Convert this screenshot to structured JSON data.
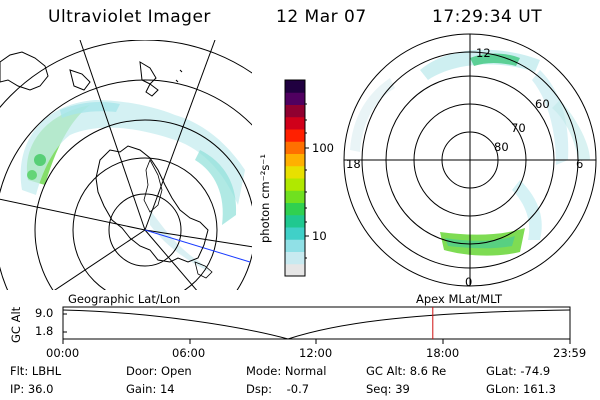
{
  "header": {
    "instrument": "Ultraviolet Imager",
    "date": "12 Mar 07",
    "time": "17:29:34 UT"
  },
  "colorbar": {
    "unit_label": "photon cm⁻²s⁻¹",
    "tick_100": "100",
    "tick_10": "10",
    "colors": [
      "#e6e6e6",
      "#c8eaf0",
      "#90e0e6",
      "#40d0c8",
      "#20c890",
      "#30d050",
      "#70e020",
      "#b0e800",
      "#e8e000",
      "#ffb000",
      "#ff7000",
      "#ff2000",
      "#d0001a",
      "#900030",
      "#500060",
      "#200040"
    ]
  },
  "left_map": {
    "caption": "Geographic Lat/Lon"
  },
  "right_map": {
    "caption": "Apex MLat/MLT",
    "lat_labels": {
      "l80": "80",
      "l70": "70",
      "l60": "60"
    },
    "mlt_labels": {
      "m12": "12",
      "m18": "18",
      "m6": "6",
      "m0": "0"
    }
  },
  "altitude_panel": {
    "ylabel": "GC Alt",
    "ytick_top": "9.0",
    "ytick_bottom": "1.8",
    "xticks": [
      "00:00",
      "06:00",
      "12:00",
      "18:00",
      "23:59"
    ],
    "marker_time": "17:29:34"
  },
  "info": {
    "filter": "Flt: LBHL",
    "ip": "IP: 36.0",
    "door": "Door: Open",
    "gain": "Gain: 14",
    "mode": "Mode: Normal",
    "dsp": "Dsp:    -0.7",
    "gc_alt": "GC Alt: 8.6 Re",
    "seq": "Seq: 39",
    "glat": "GLat: -74.9",
    "glon": "GLon: 161.3"
  }
}
